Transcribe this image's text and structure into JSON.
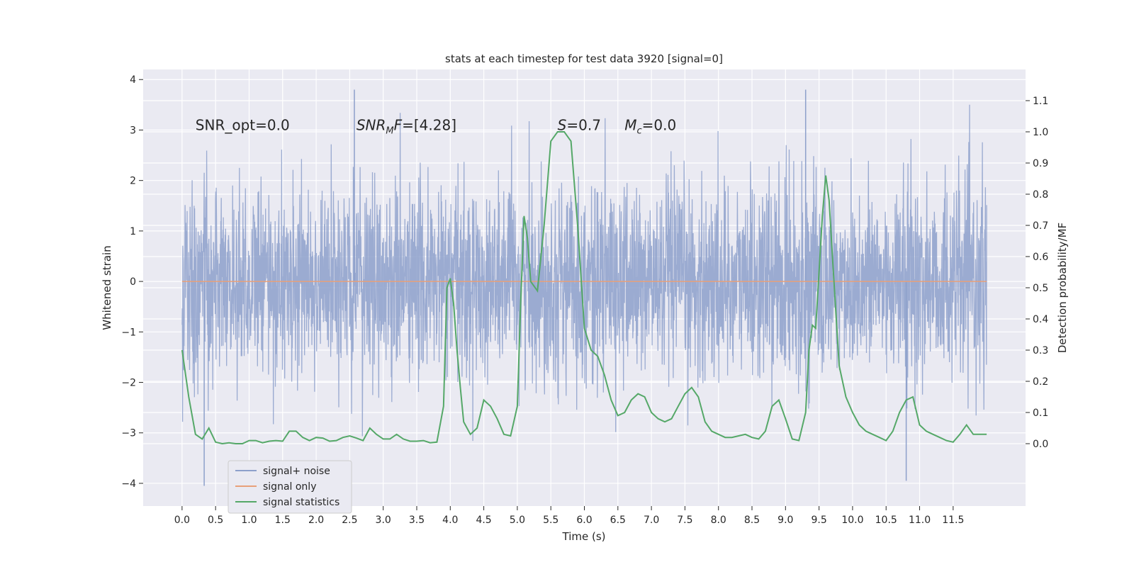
{
  "chart_data": {
    "type": "line",
    "title": "stats at each timestep for test data 3920 [signal=0]",
    "xlabel": "Time (s)",
    "ylabel": "Whitened strain",
    "y2label": "Detection probability/MF",
    "xlim": [
      -0.58,
      12.58
    ],
    "ylim": [
      -4.45,
      4.2
    ],
    "y2lim": [
      -0.2,
      1.2
    ],
    "xticks": [
      0.0,
      0.5,
      1.0,
      1.5,
      2.0,
      2.5,
      3.0,
      3.5,
      4.0,
      4.5,
      5.0,
      5.5,
      6.0,
      6.5,
      7.0,
      7.5,
      8.0,
      8.5,
      9.0,
      9.5,
      10.0,
      10.5,
      11.0,
      11.5
    ],
    "xtick_labels": [
      "0.0",
      "0.5",
      "1.0",
      "1.5",
      "2.0",
      "2.5",
      "3.0",
      "3.5",
      "4.0",
      "4.5",
      "5.0",
      "5.5",
      "6.0",
      "6.5",
      "7.0",
      "7.5",
      "8.0",
      "8.5",
      "9.0",
      "9.5",
      "10.0",
      "10.5",
      "11.0",
      "11.5"
    ],
    "yticks": [
      -4,
      -3,
      -2,
      -1,
      0,
      1,
      2,
      3,
      4
    ],
    "ytick_labels": [
      "−4",
      "−3",
      "−2",
      "−1",
      "0",
      "1",
      "2",
      "3",
      "4"
    ],
    "y2ticks": [
      0.0,
      0.1,
      0.2,
      0.3,
      0.4,
      0.5,
      0.6,
      0.7,
      0.8,
      0.9,
      1.0,
      1.1
    ],
    "y2tick_labels": [
      "0.0",
      "0.1",
      "0.2",
      "0.3",
      "0.4",
      "0.5",
      "0.6",
      "0.7",
      "0.8",
      "0.9",
      "1.0",
      "1.1"
    ],
    "grid": true,
    "legend_position": "lower-left",
    "annotations": [
      {
        "text": "SNR_opt=0.0",
        "x": 0.2,
        "y": 3.1
      },
      {
        "text": "SNR_MF=[4.28]",
        "x": 2.6,
        "y": 3.1
      },
      {
        "text": "S=0.7",
        "x": 5.6,
        "y": 3.1
      },
      {
        "text": "M_c=0.0",
        "x": 6.6,
        "y": 3.1
      }
    ],
    "series": [
      {
        "name": "signal+ noise",
        "axis": "left",
        "color": "#8da0cb",
        "style": "dense noise trace, amplitude roughly ±2.3 typical, extremes near ±4",
        "x_range": [
          0.0,
          12.0
        ],
        "sample_rate": 2048,
        "peaks": [
          {
            "x": 0.33,
            "y": -4.05
          },
          {
            "x": 2.57,
            "y": 3.8
          },
          {
            "x": 9.3,
            "y": 3.8
          },
          {
            "x": 10.8,
            "y": -3.95
          }
        ]
      },
      {
        "name": "signal only",
        "axis": "left",
        "color": "#e8a07a",
        "x": [
          0.0,
          12.0
        ],
        "values": [
          0.0,
          0.0
        ]
      },
      {
        "name": "signal statistics",
        "axis": "right",
        "color": "#55a868",
        "x": [
          0.0,
          0.1,
          0.2,
          0.3,
          0.4,
          0.5,
          0.6,
          0.7,
          0.8,
          0.9,
          1.0,
          1.1,
          1.2,
          1.3,
          1.4,
          1.5,
          1.6,
          1.7,
          1.8,
          1.9,
          2.0,
          2.1,
          2.2,
          2.3,
          2.4,
          2.5,
          2.6,
          2.7,
          2.8,
          2.9,
          3.0,
          3.1,
          3.2,
          3.3,
          3.4,
          3.5,
          3.6,
          3.7,
          3.8,
          3.9,
          3.95,
          4.0,
          4.05,
          4.1,
          4.15,
          4.2,
          4.3,
          4.4,
          4.5,
          4.6,
          4.7,
          4.8,
          4.9,
          5.0,
          5.05,
          5.1,
          5.15,
          5.2,
          5.3,
          5.4,
          5.5,
          5.6,
          5.7,
          5.8,
          5.9,
          6.0,
          6.1,
          6.2,
          6.3,
          6.4,
          6.5,
          6.6,
          6.7,
          6.8,
          6.9,
          7.0,
          7.1,
          7.2,
          7.3,
          7.4,
          7.5,
          7.6,
          7.7,
          7.8,
          7.9,
          8.0,
          8.1,
          8.2,
          8.3,
          8.4,
          8.5,
          8.6,
          8.7,
          8.8,
          8.9,
          9.0,
          9.1,
          9.2,
          9.3,
          9.35,
          9.4,
          9.45,
          9.5,
          9.55,
          9.6,
          9.65,
          9.7,
          9.8,
          9.9,
          10.0,
          10.1,
          10.2,
          10.3,
          10.4,
          10.5,
          10.6,
          10.7,
          10.8,
          10.9,
          11.0,
          11.1,
          11.2,
          11.3,
          11.4,
          11.5,
          11.6,
          11.7,
          11.8,
          11.9,
          12.0
        ],
        "values": [
          0.3,
          0.15,
          0.03,
          0.015,
          0.05,
          0.005,
          0.0,
          0.003,
          0.0,
          0.0,
          0.01,
          0.01,
          0.003,
          0.008,
          0.01,
          0.008,
          0.04,
          0.04,
          0.02,
          0.01,
          0.02,
          0.018,
          0.008,
          0.01,
          0.02,
          0.025,
          0.018,
          0.01,
          0.05,
          0.03,
          0.015,
          0.015,
          0.03,
          0.015,
          0.008,
          0.008,
          0.01,
          0.003,
          0.005,
          0.12,
          0.5,
          0.53,
          0.45,
          0.3,
          0.18,
          0.07,
          0.03,
          0.05,
          0.14,
          0.12,
          0.08,
          0.03,
          0.025,
          0.12,
          0.45,
          0.73,
          0.66,
          0.52,
          0.49,
          0.7,
          0.97,
          1.0,
          1.0,
          0.97,
          0.7,
          0.37,
          0.3,
          0.28,
          0.22,
          0.14,
          0.09,
          0.1,
          0.14,
          0.16,
          0.15,
          0.1,
          0.08,
          0.07,
          0.08,
          0.12,
          0.16,
          0.18,
          0.15,
          0.07,
          0.04,
          0.03,
          0.02,
          0.02,
          0.025,
          0.03,
          0.02,
          0.015,
          0.04,
          0.12,
          0.14,
          0.08,
          0.015,
          0.01,
          0.1,
          0.3,
          0.38,
          0.37,
          0.55,
          0.73,
          0.86,
          0.78,
          0.6,
          0.25,
          0.15,
          0.1,
          0.06,
          0.04,
          0.03,
          0.02,
          0.01,
          0.04,
          0.1,
          0.14,
          0.15,
          0.06,
          0.04,
          0.03,
          0.02,
          0.01,
          0.005,
          0.03,
          0.06,
          0.03,
          0.03,
          0.03
        ]
      }
    ]
  }
}
